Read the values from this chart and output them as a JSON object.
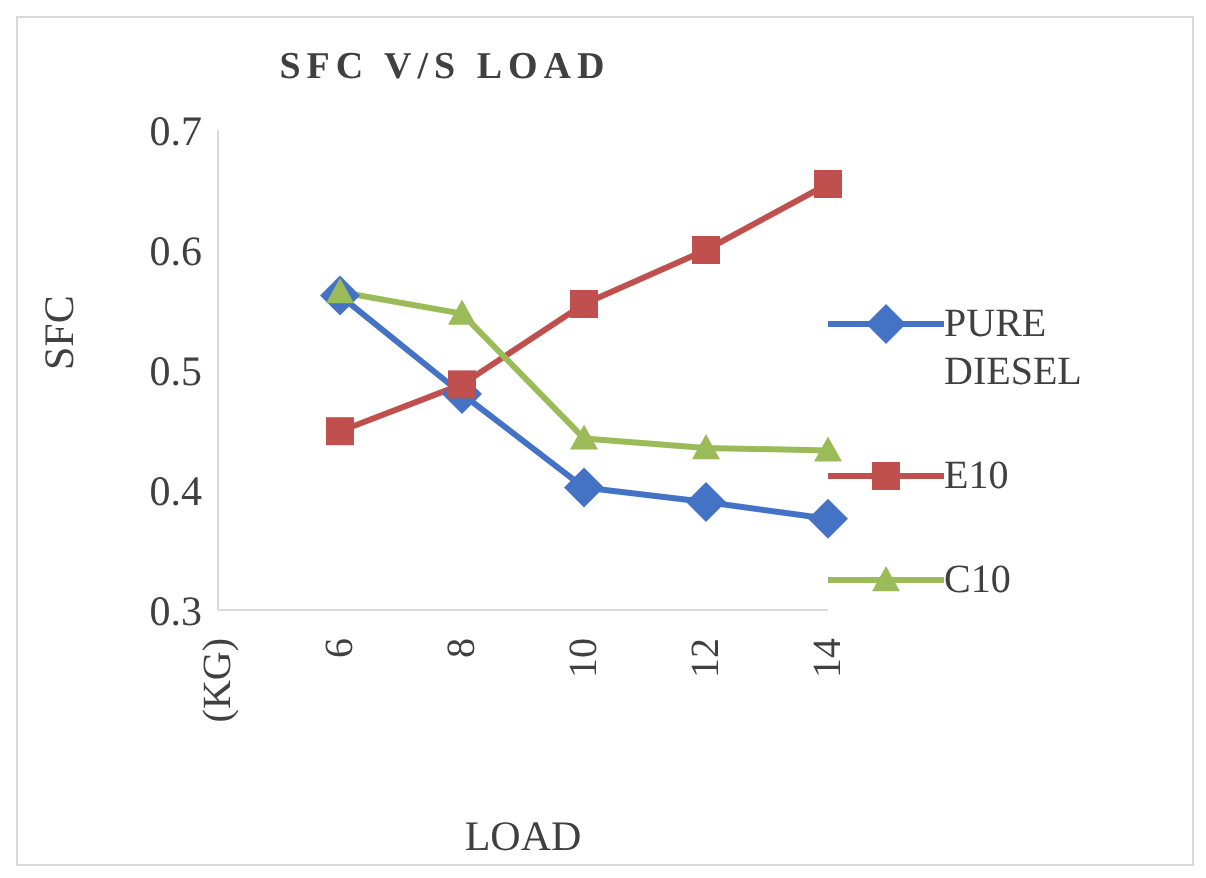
{
  "chart_data": {
    "type": "line",
    "title": "SFC V/S LOAD",
    "xlabel": "LOAD",
    "ylabel": "SFC",
    "categories": [
      "(KG)",
      "6",
      "8",
      "10",
      "12",
      "14"
    ],
    "series": [
      {
        "name": "PURE DIESEL",
        "color": "#4472c4",
        "marker": "diamond",
        "values": [
          null,
          0.562,
          0.48,
          0.402,
          0.39,
          0.376
        ]
      },
      {
        "name": "E10",
        "color": "#c0504d",
        "marker": "square",
        "values": [
          null,
          0.449,
          0.488,
          0.555,
          0.6,
          0.655
        ]
      },
      {
        "name": "C10",
        "color": "#9bbb59",
        "marker": "triangle",
        "values": [
          null,
          0.565,
          0.547,
          0.443,
          0.435,
          0.433
        ]
      }
    ],
    "ylim": [
      0.3,
      0.7
    ],
    "yticks": [
      0.3,
      0.4,
      0.5,
      0.6,
      0.7
    ],
    "grid": false,
    "legend": "right"
  }
}
